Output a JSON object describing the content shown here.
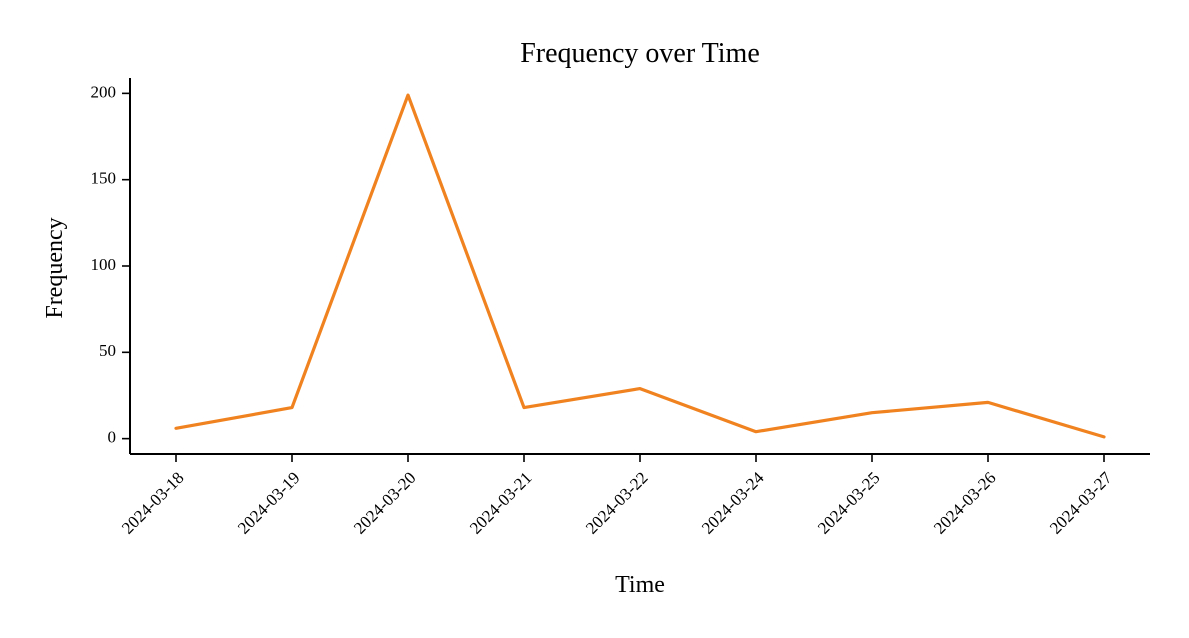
{
  "chart_data": {
    "type": "line",
    "title": "Frequency over Time",
    "xlabel": "Time",
    "ylabel": "Frequency",
    "x": [
      "2024-03-18",
      "2024-03-19",
      "2024-03-20",
      "2024-03-21",
      "2024-03-22",
      "2024-03-24",
      "2024-03-25",
      "2024-03-26",
      "2024-03-27"
    ],
    "series": [
      {
        "values": [
          6,
          18,
          199,
          18,
          29,
          4,
          15,
          21,
          1
        ]
      }
    ],
    "yticks": [
      0,
      50,
      100,
      150,
      200
    ],
    "ylim": [
      -8.9,
      208.9
    ],
    "grid": false,
    "line_color": "#f0831f"
  }
}
